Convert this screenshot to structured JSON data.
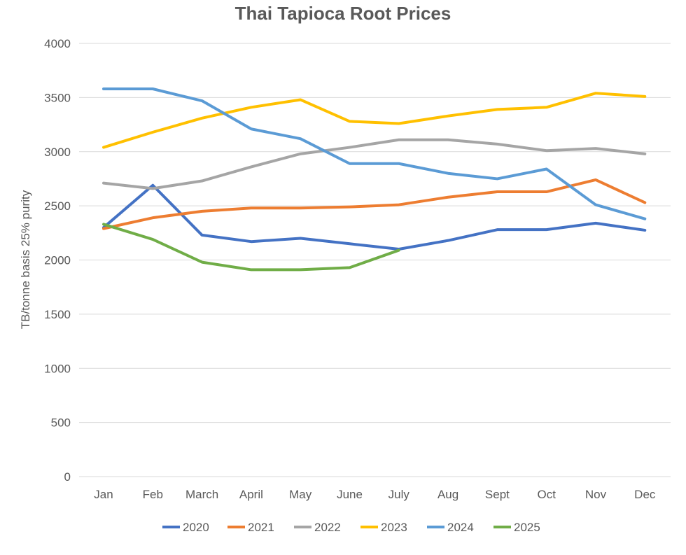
{
  "chart_data": {
    "type": "line",
    "title": "Thai Tapioca Root Prices",
    "xlabel": "",
    "ylabel": "TB/tonne basis 25% purity",
    "categories": [
      "Jan",
      "Feb",
      "March",
      "April",
      "May",
      "June",
      "July",
      "Aug",
      "Sept",
      "Oct",
      "Nov",
      "Dec"
    ],
    "ylim": [
      0,
      4000
    ],
    "yticks": [
      0,
      500,
      1000,
      1500,
      2000,
      2500,
      3000,
      3500,
      4000
    ],
    "grid": "horizontal",
    "legend_position": "bottom",
    "series": [
      {
        "name": "2020",
        "color": "#4472C4",
        "values": [
          2300,
          2690,
          2230,
          2170,
          2200,
          2150,
          2100,
          2180,
          2280,
          2280,
          2340,
          2275
        ]
      },
      {
        "name": "2021",
        "color": "#ED7D31",
        "values": [
          2290,
          2390,
          2450,
          2480,
          2480,
          2490,
          2510,
          2580,
          2630,
          2630,
          2740,
          2530
        ]
      },
      {
        "name": "2022",
        "color": "#A5A5A5",
        "values": [
          2710,
          2660,
          2730,
          2860,
          2980,
          3040,
          3110,
          3110,
          3070,
          3010,
          3030,
          2980
        ]
      },
      {
        "name": "2023",
        "color": "#FFC000",
        "values": [
          3040,
          3180,
          3310,
          3410,
          3480,
          3280,
          3260,
          3330,
          3390,
          3410,
          3540,
          3510
        ]
      },
      {
        "name": "2024",
        "color": "#5B9BD5",
        "values": [
          3580,
          3580,
          3470,
          3210,
          3120,
          2890,
          2890,
          2800,
          2750,
          2840,
          2510,
          2380
        ]
      },
      {
        "name": "2025",
        "color": "#70AD47",
        "values": [
          2330,
          2190,
          1980,
          1910,
          1910,
          1930,
          2090,
          null,
          null,
          null,
          null,
          null
        ]
      }
    ]
  }
}
